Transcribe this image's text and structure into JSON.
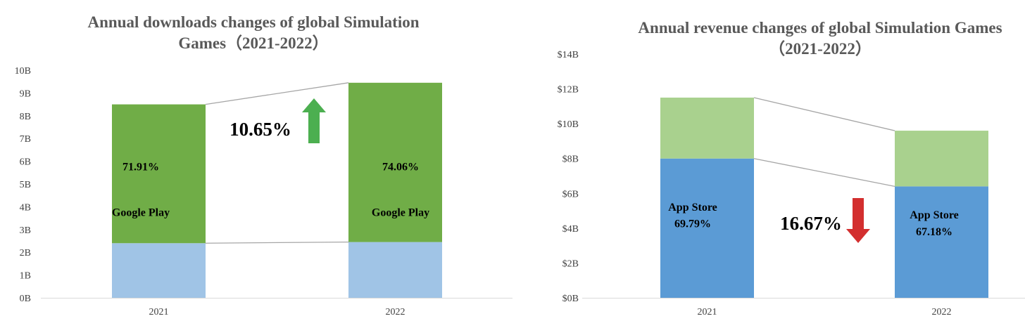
{
  "chart_data": [
    {
      "type": "bar",
      "stacked": true,
      "title_line1": "Annual downloads changes of global Simulation",
      "title_line2": "Games（2021-2022）",
      "categories": [
        "2021",
        "2022"
      ],
      "yticks": [
        "0B",
        "1B",
        "2B",
        "3B",
        "4B",
        "5B",
        "6B",
        "7B",
        "8B",
        "9B",
        "10B"
      ],
      "ylim": [
        0,
        10
      ],
      "series": [
        {
          "values": [
            2.4,
            2.45
          ],
          "color": "#a0c4e6"
        },
        {
          "values": [
            6.1,
            7.0
          ],
          "color": "#70ad47"
        }
      ],
      "segment_labels": [
        {
          "name": "Google Play",
          "share": "71.91%"
        },
        {
          "name": "Google Play",
          "share": "74.06%"
        }
      ],
      "change_text": "10.65%",
      "change_direction": "up",
      "arrow_color": "#4caf50"
    },
    {
      "type": "bar",
      "stacked": true,
      "title_line1": "Annual revenue changes of global Simulation Games",
      "title_line2": "（2021-2022）",
      "categories": [
        "2021",
        "2022"
      ],
      "yticks": [
        "$0B",
        "$2B",
        "$4B",
        "$6B",
        "$8B",
        "$10B",
        "$12B",
        "$14B"
      ],
      "ylim": [
        0,
        14
      ],
      "series": [
        {
          "values": [
            8.0,
            6.4
          ],
          "color": "#5b9bd5"
        },
        {
          "values": [
            3.5,
            3.2
          ],
          "color": "#a9d18e"
        }
      ],
      "segment_labels": [
        {
          "name": "App Store",
          "share": "69.79%"
        },
        {
          "name": "App Store",
          "share": "67.18%"
        }
      ],
      "change_text": "16.67%",
      "change_direction": "down",
      "arrow_color": "#d32f2f"
    }
  ]
}
